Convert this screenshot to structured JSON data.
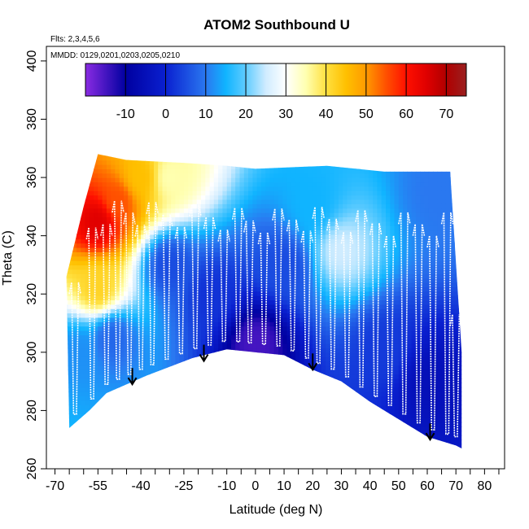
{
  "chart_data": {
    "type": "heatmap",
    "title": "ATOM2 Southbound U",
    "annotations": [
      "Flts: 2,3,4,5,6",
      "MMDD: 0129,0201,0203,0205,0210"
    ],
    "xlabel": "Latitude (deg N)",
    "ylabel": "Theta (C)",
    "xlim": [
      -73,
      87
    ],
    "ylim": [
      260,
      405
    ],
    "x_ticks": [
      -70,
      -65,
      -60,
      -55,
      -50,
      -45,
      -40,
      -35,
      -30,
      -25,
      -20,
      -15,
      -10,
      -5,
      0,
      5,
      10,
      15,
      20,
      25,
      30,
      35,
      40,
      45,
      50,
      55,
      60,
      65,
      70,
      75,
      80,
      85
    ],
    "x_tick_labels": [
      {
        "value": -70,
        "label": "-70"
      },
      {
        "value": -55,
        "label": "-55"
      },
      {
        "value": -40,
        "label": "-40"
      },
      {
        "value": -25,
        "label": "-25"
      },
      {
        "value": -10,
        "label": "-10"
      },
      {
        "value": 0,
        "label": "0"
      },
      {
        "value": 10,
        "label": "10"
      },
      {
        "value": 20,
        "label": "20"
      },
      {
        "value": 30,
        "label": "30"
      },
      {
        "value": 40,
        "label": "40"
      },
      {
        "value": 50,
        "label": "50"
      },
      {
        "value": 60,
        "label": "60"
      },
      {
        "value": 70,
        "label": "70"
      },
      {
        "value": 80,
        "label": "80"
      }
    ],
    "y_ticks": [
      260,
      280,
      300,
      320,
      340,
      360,
      380,
      400
    ],
    "y_tick_labels": [
      "260",
      "280",
      "300",
      "320",
      "340",
      "360",
      "380",
      "400"
    ],
    "colorbar": {
      "range": [
        -20,
        75
      ],
      "tick_values": [
        -10,
        0,
        10,
        20,
        30,
        40,
        50,
        60,
        70
      ],
      "tick_labels": [
        "-10",
        "0",
        "10",
        "20",
        "30",
        "40",
        "50",
        "60",
        "70"
      ],
      "color_stops": [
        {
          "value": -20,
          "color": "#8a2be2"
        },
        {
          "value": -10,
          "color": "#0000a0"
        },
        {
          "value": 0,
          "color": "#0a20d0"
        },
        {
          "value": 10,
          "color": "#2a78f0"
        },
        {
          "value": 15,
          "color": "#10b4ff"
        },
        {
          "value": 20,
          "color": "#60ccff"
        },
        {
          "value": 25,
          "color": "#d0ecff"
        },
        {
          "value": 30,
          "color": "#ffffff"
        },
        {
          "value": 35,
          "color": "#ffffb0"
        },
        {
          "value": 40,
          "color": "#ffe040"
        },
        {
          "value": 45,
          "color": "#ffc000"
        },
        {
          "value": 50,
          "color": "#ff9a00"
        },
        {
          "value": 55,
          "color": "#ff5000"
        },
        {
          "value": 60,
          "color": "#ff1000"
        },
        {
          "value": 65,
          "color": "#e00000"
        },
        {
          "value": 70,
          "color": "#b00000"
        },
        {
          "value": 75,
          "color": "#9a2020"
        }
      ]
    },
    "domain_bottom": [
      [
        -65,
        274
      ],
      [
        -58,
        280
      ],
      [
        -52,
        286
      ],
      [
        -45,
        289
      ],
      [
        -38,
        292
      ],
      [
        -30,
        295
      ],
      [
        -22,
        298
      ],
      [
        -10,
        301
      ],
      [
        0,
        300
      ],
      [
        10,
        299
      ],
      [
        20,
        294
      ],
      [
        30,
        290
      ],
      [
        40,
        283
      ],
      [
        50,
        277
      ],
      [
        60,
        271
      ],
      [
        70,
        268
      ],
      [
        72,
        267
      ]
    ],
    "domain_top": [
      [
        -66,
        326
      ],
      [
        -60,
        350
      ],
      [
        -55,
        368
      ],
      [
        -45,
        366
      ],
      [
        -25,
        365
      ],
      [
        -10,
        364
      ],
      [
        0,
        363
      ],
      [
        25,
        364
      ],
      [
        45,
        362
      ],
      [
        68,
        362
      ],
      [
        72,
        300
      ]
    ],
    "u_field": [
      {
        "lat": -55,
        "theta": 345,
        "u": 65
      },
      {
        "lat": -48,
        "theta": 352,
        "u": 55
      },
      {
        "lat": -40,
        "theta": 360,
        "u": 45
      },
      {
        "lat": -30,
        "theta": 360,
        "u": 35
      },
      {
        "lat": -55,
        "theta": 322,
        "u": 42
      },
      {
        "lat": -62,
        "theta": 300,
        "u": 12
      },
      {
        "lat": -50,
        "theta": 305,
        "u": 8
      },
      {
        "lat": -30,
        "theta": 330,
        "u": 5
      },
      {
        "lat": -15,
        "theta": 320,
        "u": 2
      },
      {
        "lat": 0,
        "theta": 303,
        "u": -15
      },
      {
        "lat": 10,
        "theta": 330,
        "u": 5
      },
      {
        "lat": 20,
        "theta": 350,
        "u": 15
      },
      {
        "lat": 30,
        "theta": 335,
        "u": 25
      },
      {
        "lat": 45,
        "theta": 300,
        "u": 3
      },
      {
        "lat": 60,
        "theta": 290,
        "u": -5
      },
      {
        "lat": 65,
        "theta": 355,
        "u": 10
      }
    ],
    "aircraft_profiles_lat": [
      -63,
      -57,
      -52,
      -48,
      -44,
      -40,
      -36,
      -31,
      -26,
      -21,
      -16,
      -11,
      -6,
      -2,
      3,
      8,
      13,
      18,
      22,
      27,
      32,
      37,
      42,
      47,
      52,
      57,
      62,
      67,
      70
    ],
    "arrows": [
      {
        "lat": -43,
        "theta": 289
      },
      {
        "lat": -18,
        "theta": 297
      },
      {
        "lat": 20,
        "theta": 294
      },
      {
        "lat": 61,
        "theta": 270
      }
    ]
  }
}
